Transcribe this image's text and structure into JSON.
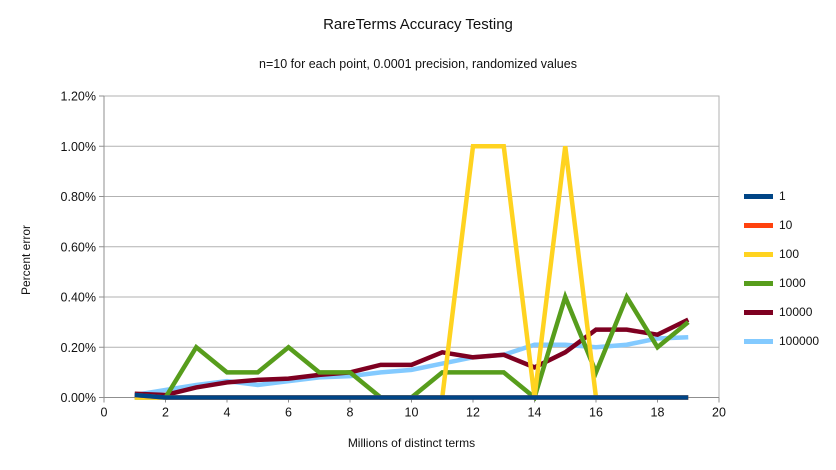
{
  "title": "RareTerms Accuracy Testing",
  "subtitle": "n=10 for each point, 0.0001 precision, randomized values",
  "axes": {
    "x_title": "Millions of distinct terms",
    "y_title": "Percent error"
  },
  "colors": {
    "grid": "#b2b2b2",
    "axis": "#8f8f8f",
    "text": "#111111",
    "background": "#ffffff"
  },
  "chart_data": {
    "type": "line",
    "title": "RareTerms Accuracy Testing",
    "subtitle": "n=10 for each point, 0.0001 precision, randomized values",
    "xlabel": "Millions of distinct terms",
    "ylabel": "Percent error",
    "grid": "horizontal",
    "legend_position": "right",
    "xlim": [
      0,
      20
    ],
    "ylim_percent": [
      0,
      1.2
    ],
    "x_ticks": [
      0,
      2,
      4,
      6,
      8,
      10,
      12,
      14,
      16,
      18,
      20
    ],
    "x_tick_labels": [
      "0",
      "2",
      "4",
      "6",
      "8",
      "10",
      "12",
      "14",
      "16",
      "18",
      "20"
    ],
    "y_tick_values": [
      0,
      0.2,
      0.4,
      0.6,
      0.8,
      1.0,
      1.2
    ],
    "y_tick_labels": [
      "0.00%",
      "0.20%",
      "0.40%",
      "0.60%",
      "0.80%",
      "1.00%",
      "1.20%"
    ],
    "x": [
      1,
      2,
      3,
      4,
      5,
      6,
      7,
      8,
      9,
      10,
      11,
      12,
      13,
      14,
      15,
      16,
      17,
      18,
      19
    ],
    "series": [
      {
        "name": "1",
        "color": "#004586",
        "values": [
          0.01,
          0,
          0,
          0,
          0,
          0,
          0,
          0,
          0,
          0,
          0,
          0,
          0,
          0,
          0,
          0,
          0,
          0,
          0
        ]
      },
      {
        "name": "10",
        "color": "#ff420e",
        "values": [
          0.01,
          0,
          0,
          0,
          0,
          0,
          0,
          0,
          0,
          0,
          0,
          0,
          0,
          0,
          0,
          0,
          0,
          0,
          0
        ]
      },
      {
        "name": "100",
        "color": "#ffd320",
        "values": [
          0,
          0,
          0,
          0,
          0,
          0,
          0,
          0,
          0,
          0,
          0,
          1.0,
          1.0,
          0,
          1.0,
          0,
          0,
          0,
          0
        ]
      },
      {
        "name": "1000",
        "color": "#579d1c",
        "values": [
          0,
          0,
          0.2,
          0.1,
          0.1,
          0.2,
          0.1,
          0.1,
          0,
          0,
          0.1,
          0.1,
          0.1,
          0,
          0.4,
          0.1,
          0.4,
          0.2,
          0.3
        ]
      },
      {
        "name": "10000",
        "color": "#7e0021",
        "values": [
          0.015,
          0.01,
          0.04,
          0.06,
          0.07,
          0.075,
          0.09,
          0.1,
          0.13,
          0.13,
          0.18,
          0.16,
          0.17,
          0.12,
          0.18,
          0.27,
          0.27,
          0.25,
          0.31
        ]
      },
      {
        "name": "100000",
        "color": "#83caff",
        "values": [
          0.01,
          0.03,
          0.05,
          0.065,
          0.05,
          0.065,
          0.08,
          0.085,
          0.1,
          0.11,
          0.135,
          0.16,
          0.17,
          0.21,
          0.21,
          0.2,
          0.21,
          0.235,
          0.24
        ]
      }
    ],
    "draw_order": [
      "100000",
      "10000",
      "1000",
      "100",
      "10",
      "1"
    ]
  }
}
